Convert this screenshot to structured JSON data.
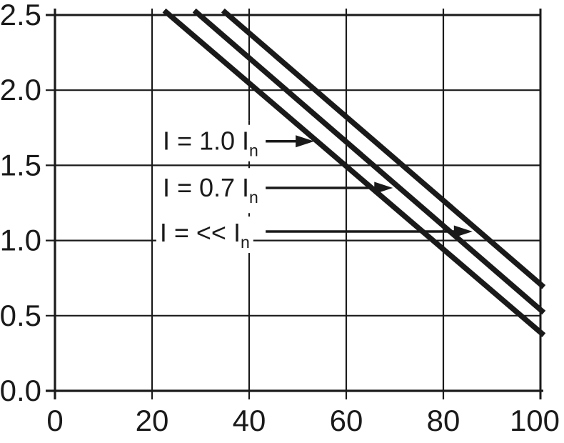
{
  "chart_data": {
    "type": "line",
    "title": "",
    "xlabel": "",
    "ylabel": "",
    "xlim": [
      0,
      100
    ],
    "ylim": [
      0,
      2.5
    ],
    "grid": true,
    "x_ticks": [
      "0",
      "20",
      "40",
      "60",
      "80",
      "100"
    ],
    "x_tick_values": [
      0,
      20,
      40,
      60,
      80,
      100
    ],
    "y_ticks": [
      "0.0",
      "0.5",
      "1.0",
      "1.5",
      "2.0",
      "2.5"
    ],
    "y_tick_values": [
      0,
      0.5,
      1.0,
      1.5,
      2.0,
      2.5
    ],
    "series": [
      {
        "name": "I = 1.0 In",
        "points": [
          [
            22.5,
            2.53
          ],
          [
            100.7,
            0.37
          ]
        ]
      },
      {
        "name": "I = 0.7 In",
        "points": [
          [
            28.7,
            2.53
          ],
          [
            100.7,
            0.52
          ]
        ]
      },
      {
        "name": "I = << In",
        "points": [
          [
            34.6,
            2.53
          ],
          [
            100.7,
            0.69
          ]
        ]
      }
    ],
    "annotations": [
      {
        "text": "I = 1.0 I",
        "subscript": "n",
        "x": 22.2,
        "y": 1.66,
        "arrow": {
          "x1": 43.4,
          "x2": 53.4,
          "y": 1.66
        }
      },
      {
        "text": "I = 0.7 I",
        "subscript": "n",
        "x": 22.2,
        "y": 1.35,
        "arrow": {
          "x1": 43.4,
          "x2": 69.6,
          "y": 1.35
        }
      },
      {
        "text": "I = << I",
        "subscript": "n",
        "x": 21.6,
        "y": 1.05,
        "arrow": {
          "x1": 43.4,
          "x2": 86.0,
          "y": 1.06
        }
      }
    ],
    "dashed_gridline": {
      "x": 40,
      "y_from": 0.93,
      "y_to": 1.8
    },
    "colors": {
      "ink": "#1a1a1a",
      "background": "#ffffff"
    }
  }
}
